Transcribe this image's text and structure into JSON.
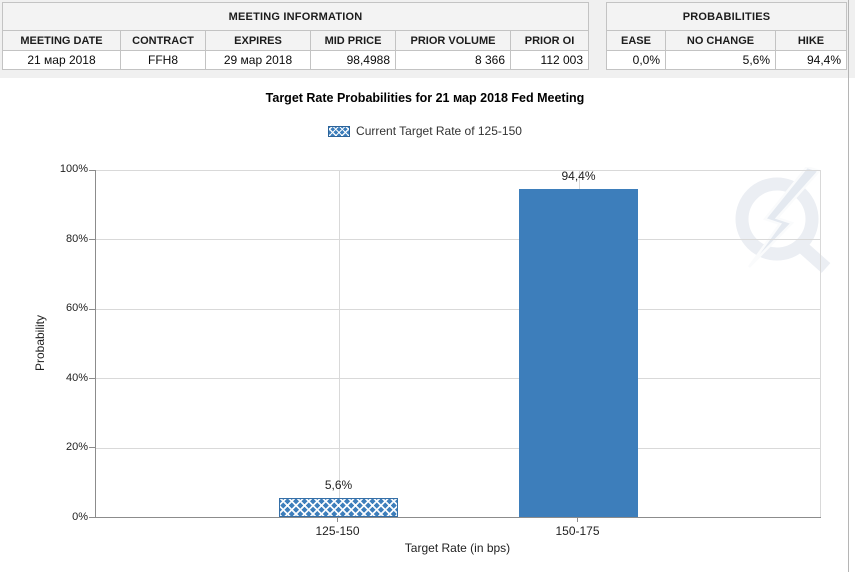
{
  "meeting_information": {
    "title": "MEETING INFORMATION",
    "columns": [
      "MEETING DATE",
      "CONTRACT",
      "EXPIRES",
      "MID PRICE",
      "PRIOR VOLUME",
      "PRIOR OI"
    ],
    "row": [
      "21 мар 2018",
      "FFH8",
      "29 мар 2018",
      "98,4988",
      "8 366",
      "112 003"
    ]
  },
  "probabilities": {
    "title": "PROBABILITIES",
    "columns": [
      "EASE",
      "NO CHANGE",
      "HIKE"
    ],
    "row": [
      "0,0%",
      "5,6%",
      "94,4%"
    ]
  },
  "chart_data": {
    "type": "bar",
    "title": "Target Rate Probabilities for 21 мар 2018 Fed Meeting",
    "legend": [
      "Current Target Rate of 125-150"
    ],
    "legend_position": "top",
    "categories": [
      "125-150",
      "150-175"
    ],
    "values": [
      5.6,
      94.4
    ],
    "value_labels": [
      "5,6%",
      "94,4%"
    ],
    "bar_styles": [
      "crosshatch",
      "solid"
    ],
    "xlabel": "Target Rate (in bps)",
    "ylabel": "Probability",
    "ylim": [
      0,
      100
    ],
    "yticks": [
      "0%",
      "20%",
      "40%",
      "60%",
      "80%",
      "100%"
    ],
    "grid": true,
    "colors": {
      "bar_blue": "#3d7ebb",
      "gridline": "#d9d9d9",
      "axis": "#8c8c8c"
    }
  },
  "icons": {
    "watermark": "quikstrike-lightning-q-logo"
  }
}
